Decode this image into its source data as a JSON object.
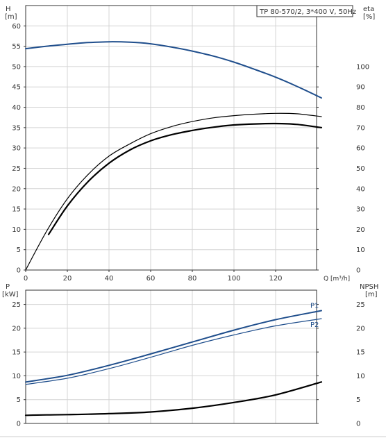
{
  "chart_data": [
    {
      "type": "line",
      "title": "TP 80-570/2, 3*400 V, 50Hz",
      "xlabel": "Q [m³/h]",
      "ylabel": "H\n[m]",
      "y2label": "eta\n[%]",
      "xlim": [
        0,
        142
      ],
      "ylim": [
        0,
        65
      ],
      "y2lim": [
        0,
        130
      ],
      "grid": true,
      "x_ticks": [
        0,
        20,
        40,
        60,
        80,
        100,
        120
      ],
      "y_ticks": [
        0,
        5,
        10,
        15,
        20,
        25,
        30,
        35,
        40,
        45,
        50,
        55,
        60
      ],
      "y2_ticks": [
        0,
        10,
        20,
        30,
        40,
        50,
        60,
        70,
        80,
        90,
        100
      ],
      "series": [
        {
          "axis": "left",
          "color": "#1f4e8c",
          "width": 2,
          "x": [
            0,
            10,
            20,
            30,
            40,
            50,
            60,
            70,
            80,
            90,
            100,
            110,
            120,
            130,
            142
          ],
          "y": [
            54.4,
            55.0,
            55.5,
            55.9,
            56.1,
            56.0,
            55.6,
            54.8,
            53.8,
            52.6,
            51.1,
            49.3,
            47.4,
            45.2,
            42.3
          ]
        },
        {
          "axis": "right",
          "color": "#000000",
          "width": 1.2,
          "x": [
            0,
            10,
            20,
            30,
            40,
            50,
            60,
            70,
            80,
            90,
            100,
            110,
            120,
            130,
            142
          ],
          "y": [
            0,
            19,
            35,
            47,
            56,
            62,
            67,
            70.5,
            73,
            74.8,
            75.9,
            76.6,
            77,
            76.8,
            75.4
          ]
        },
        {
          "axis": "right",
          "color": "#000000",
          "width": 2.2,
          "x": [
            11,
            20,
            30,
            40,
            50,
            60,
            70,
            80,
            90,
            100,
            110,
            120,
            130,
            142
          ],
          "y": [
            17.5,
            31.5,
            43.5,
            52.5,
            59,
            63.5,
            66.5,
            68.6,
            70.2,
            71.3,
            71.8,
            72,
            71.6,
            70
          ]
        }
      ]
    },
    {
      "type": "line",
      "ylabel": "P\n[kW]",
      "y2label": "NPSH\n[m]",
      "xlim": [
        0,
        142
      ],
      "ylim": [
        0,
        28
      ],
      "y2lim": [
        0,
        28
      ],
      "grid": true,
      "y_ticks": [
        0,
        5,
        10,
        15,
        20,
        25
      ],
      "y2_ticks": [
        0,
        5,
        10,
        15,
        20,
        25
      ],
      "series": [
        {
          "name": "P1",
          "axis": "left",
          "color": "#1f4e8c",
          "width": 2,
          "x": [
            0,
            20,
            40,
            60,
            80,
            100,
            120,
            142
          ],
          "y": [
            8.7,
            10.1,
            12.2,
            14.6,
            17.1,
            19.6,
            21.8,
            23.7
          ]
        },
        {
          "name": "P2",
          "axis": "left",
          "color": "#1f4e8c",
          "width": 1.2,
          "x": [
            0,
            20,
            40,
            60,
            80,
            100,
            120,
            142
          ],
          "y": [
            8.2,
            9.5,
            11.5,
            13.9,
            16.4,
            18.6,
            20.5,
            22.0
          ]
        },
        {
          "axis": "right",
          "color": "#000000",
          "width": 2.2,
          "x": [
            0,
            10,
            20,
            40,
            60,
            80,
            100,
            120,
            142
          ],
          "y": [
            1.7,
            1.8,
            1.85,
            2.05,
            2.4,
            3.2,
            4.4,
            6.0,
            8.7
          ]
        }
      ]
    }
  ]
}
